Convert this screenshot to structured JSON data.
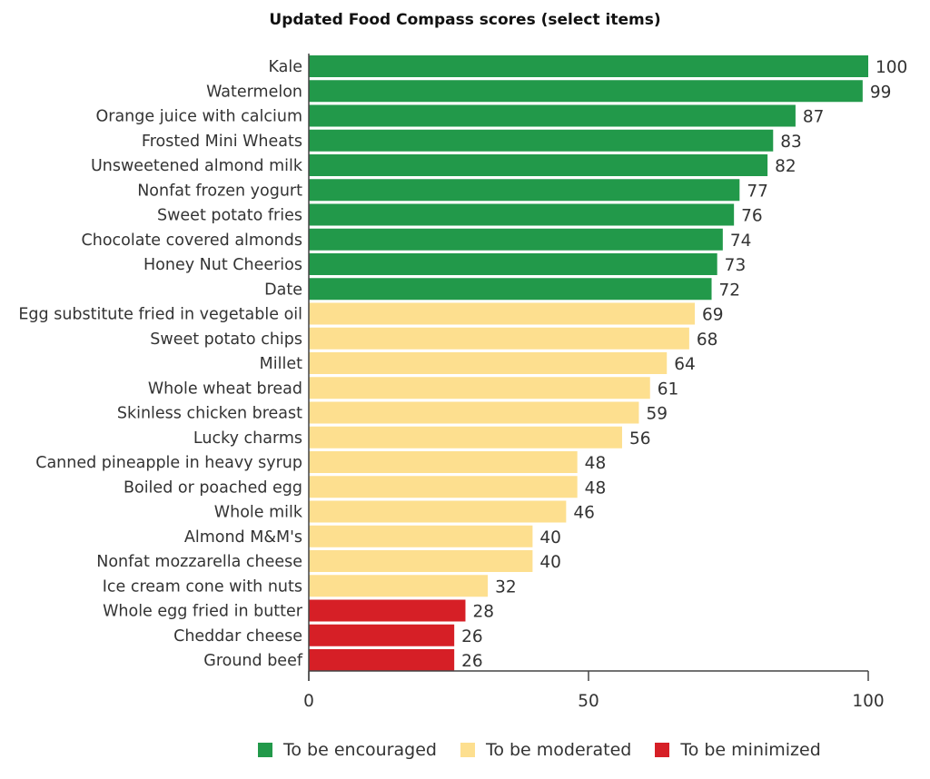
{
  "chart_data": {
    "type": "bar",
    "orientation": "horizontal",
    "title": "Updated Food Compass scores (select items)",
    "xlabel": "",
    "ylabel": "",
    "xlim": [
      0,
      100
    ],
    "xticks": [
      0,
      50,
      100
    ],
    "grid": false,
    "legend_position": "bottom",
    "categories": [
      "Kale",
      "Watermelon",
      "Orange juice with calcium",
      "Frosted Mini Wheats",
      "Unsweetened almond milk",
      "Nonfat frozen yogurt",
      "Sweet potato fries",
      "Chocolate covered almonds",
      "Honey Nut Cheerios",
      "Date",
      "Egg substitute fried in vegetable oil",
      "Sweet potato chips",
      "Millet",
      "Whole wheat bread",
      "Skinless chicken breast",
      "Lucky charms",
      "Canned pineapple in heavy syrup",
      "Boiled or poached egg",
      "Whole milk",
      "Almond M&M's",
      "Nonfat mozzarella cheese",
      "Ice cream cone with nuts",
      "Whole egg fried in butter",
      "Cheddar cheese",
      "Ground beef"
    ],
    "values": [
      100,
      99,
      87,
      83,
      82,
      77,
      76,
      74,
      73,
      72,
      69,
      68,
      64,
      61,
      59,
      56,
      48,
      48,
      46,
      40,
      40,
      32,
      28,
      26,
      26
    ],
    "groups": [
      "encouraged",
      "encouraged",
      "encouraged",
      "encouraged",
      "encouraged",
      "encouraged",
      "encouraged",
      "encouraged",
      "encouraged",
      "encouraged",
      "moderated",
      "moderated",
      "moderated",
      "moderated",
      "moderated",
      "moderated",
      "moderated",
      "moderated",
      "moderated",
      "moderated",
      "moderated",
      "moderated",
      "minimized",
      "minimized",
      "minimized"
    ],
    "legend": [
      {
        "key": "encouraged",
        "label": "To be encouraged",
        "color": "#22994a"
      },
      {
        "key": "moderated",
        "label": "To be moderated",
        "color": "#fddf8f"
      },
      {
        "key": "minimized",
        "label": "To be minimized",
        "color": "#d61f26"
      }
    ]
  }
}
